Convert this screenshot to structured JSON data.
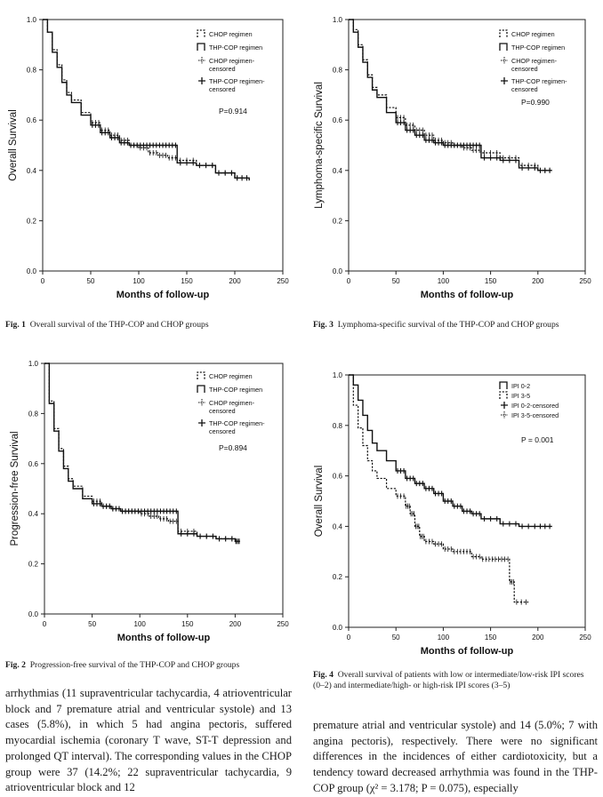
{
  "chart_data": [
    {
      "type": "line",
      "figure": "Fig. 1",
      "ylabel": "Overall Survival",
      "xlabel": "Months of follow-up",
      "xlim": [
        0,
        250
      ],
      "ylim": [
        0,
        1.0
      ],
      "xticks": [
        0,
        50,
        100,
        150,
        200,
        250
      ],
      "yticks": [
        0.0,
        0.2,
        0.4,
        0.6,
        0.8,
        1.0
      ],
      "legend": [
        "CHOP regimen",
        "THP-COP regimen",
        "CHOP regimen-censored",
        "THP-COP regimen-censored"
      ],
      "pvalue": "P=0.914",
      "series": [
        {
          "name": "CHOP regimen",
          "style": "dashed",
          "x": [
            0,
            5,
            10,
            15,
            20,
            25,
            30,
            40,
            50,
            60,
            70,
            80,
            90,
            100,
            110,
            120,
            130,
            140,
            160,
            180,
            200,
            215
          ],
          "y": [
            1.0,
            0.95,
            0.88,
            0.82,
            0.76,
            0.71,
            0.68,
            0.63,
            0.59,
            0.56,
            0.54,
            0.52,
            0.5,
            0.49,
            0.47,
            0.46,
            0.45,
            0.44,
            0.42,
            0.39,
            0.37,
            0.37
          ]
        },
        {
          "name": "THP-COP regimen",
          "style": "solid",
          "x": [
            0,
            5,
            10,
            15,
            20,
            25,
            30,
            40,
            50,
            60,
            70,
            80,
            90,
            100,
            110,
            120,
            130,
            140,
            160,
            180,
            200,
            215
          ],
          "y": [
            1.0,
            0.95,
            0.87,
            0.81,
            0.75,
            0.7,
            0.67,
            0.62,
            0.58,
            0.55,
            0.53,
            0.51,
            0.5,
            0.5,
            0.5,
            0.5,
            0.5,
            0.43,
            0.42,
            0.39,
            0.37,
            0.36
          ]
        }
      ]
    },
    {
      "type": "line",
      "figure": "Fig. 3",
      "ylabel": "Lymphoma-specific Survival",
      "xlabel": "Months of follow-up",
      "xlim": [
        0,
        250
      ],
      "ylim": [
        0,
        1.0
      ],
      "xticks": [
        0,
        50,
        100,
        150,
        200,
        250
      ],
      "yticks": [
        0.0,
        0.2,
        0.4,
        0.6,
        0.8,
        1.0
      ],
      "legend": [
        "CHOP regimen",
        "THP-COP regimen",
        "CHOP regimen-censored",
        "THP-COP regimen-censored"
      ],
      "pvalue": "P=0.990",
      "series": [
        {
          "name": "CHOP regimen",
          "style": "dashed",
          "x": [
            0,
            5,
            10,
            15,
            20,
            25,
            30,
            40,
            50,
            60,
            70,
            80,
            90,
            100,
            110,
            120,
            130,
            140,
            160,
            180,
            200,
            215
          ],
          "y": [
            1.0,
            0.96,
            0.9,
            0.84,
            0.78,
            0.73,
            0.7,
            0.65,
            0.61,
            0.58,
            0.56,
            0.54,
            0.52,
            0.51,
            0.5,
            0.49,
            0.48,
            0.47,
            0.45,
            0.42,
            0.4,
            0.4
          ]
        },
        {
          "name": "THP-COP regimen",
          "style": "solid",
          "x": [
            0,
            5,
            10,
            15,
            20,
            25,
            30,
            40,
            50,
            60,
            70,
            80,
            90,
            100,
            110,
            120,
            130,
            140,
            160,
            180,
            200,
            215
          ],
          "y": [
            1.0,
            0.95,
            0.89,
            0.83,
            0.77,
            0.72,
            0.69,
            0.63,
            0.59,
            0.56,
            0.54,
            0.52,
            0.51,
            0.5,
            0.5,
            0.5,
            0.5,
            0.45,
            0.44,
            0.41,
            0.4,
            0.4
          ]
        }
      ]
    },
    {
      "type": "line",
      "figure": "Fig. 2",
      "ylabel": "Progression-free Survival",
      "xlabel": "Months of follow-up",
      "xlim": [
        0,
        250
      ],
      "ylim": [
        0,
        1.0
      ],
      "xticks": [
        0,
        50,
        100,
        150,
        200,
        250
      ],
      "yticks": [
        0.0,
        0.2,
        0.4,
        0.6,
        0.8,
        1.0
      ],
      "legend": [
        "CHOP regimen",
        "THP-COP regimen",
        "CHOP regimen-censored",
        "THP-COP regimen-censored"
      ],
      "pvalue": "P=0.894",
      "series": [
        {
          "name": "CHOP regimen",
          "style": "dashed",
          "x": [
            0,
            5,
            10,
            15,
            20,
            25,
            30,
            40,
            50,
            60,
            70,
            80,
            90,
            100,
            110,
            120,
            130,
            140,
            160,
            180,
            200,
            205
          ],
          "y": [
            1.0,
            0.85,
            0.74,
            0.66,
            0.59,
            0.54,
            0.51,
            0.47,
            0.45,
            0.43,
            0.42,
            0.41,
            0.41,
            0.4,
            0.39,
            0.38,
            0.37,
            0.33,
            0.31,
            0.3,
            0.29,
            0.29
          ]
        },
        {
          "name": "THP-COP regimen",
          "style": "solid",
          "x": [
            0,
            5,
            10,
            15,
            20,
            25,
            30,
            40,
            50,
            60,
            70,
            80,
            90,
            100,
            110,
            120,
            130,
            140,
            160,
            180,
            200,
            205
          ],
          "y": [
            1.0,
            0.84,
            0.73,
            0.65,
            0.58,
            0.53,
            0.5,
            0.46,
            0.44,
            0.43,
            0.42,
            0.41,
            0.41,
            0.41,
            0.41,
            0.41,
            0.41,
            0.32,
            0.31,
            0.3,
            0.29,
            0.29
          ]
        }
      ]
    },
    {
      "type": "line",
      "figure": "Fig. 4",
      "ylabel": "Overall Survival",
      "xlabel": "Months of follow-up",
      "xlim": [
        0,
        250
      ],
      "ylim": [
        0,
        1.0
      ],
      "xticks": [
        0,
        50,
        100,
        150,
        200,
        250
      ],
      "yticks": [
        0.0,
        0.2,
        0.4,
        0.6,
        0.8,
        1.0
      ],
      "legend": [
        "IPI 0-2",
        "IPI 3-5",
        "IPI 0-2-censored",
        "IPI 3-5-censored"
      ],
      "pvalue": "P = 0.001",
      "series": [
        {
          "name": "IPI 0-2",
          "style": "solid",
          "x": [
            0,
            5,
            10,
            15,
            20,
            25,
            30,
            40,
            50,
            60,
            70,
            80,
            90,
            100,
            110,
            120,
            130,
            140,
            160,
            180,
            200,
            215
          ],
          "y": [
            1.0,
            0.96,
            0.9,
            0.84,
            0.78,
            0.73,
            0.7,
            0.66,
            0.62,
            0.59,
            0.57,
            0.55,
            0.53,
            0.5,
            0.48,
            0.46,
            0.45,
            0.43,
            0.41,
            0.4,
            0.4,
            0.4
          ]
        },
        {
          "name": "IPI 3-5",
          "style": "dashed",
          "x": [
            0,
            5,
            10,
            15,
            20,
            25,
            30,
            40,
            50,
            60,
            65,
            70,
            75,
            80,
            90,
            100,
            110,
            120,
            130,
            140,
            150,
            160,
            170,
            175,
            190
          ],
          "y": [
            1.0,
            0.88,
            0.79,
            0.72,
            0.66,
            0.62,
            0.59,
            0.55,
            0.52,
            0.48,
            0.45,
            0.4,
            0.36,
            0.34,
            0.33,
            0.31,
            0.3,
            0.3,
            0.28,
            0.27,
            0.27,
            0.27,
            0.18,
            0.1,
            0.1
          ]
        }
      ]
    }
  ],
  "captions": {
    "fig1": {
      "label": "Fig. 1",
      "text": "Overall survival of the THP-COP and CHOP groups"
    },
    "fig3": {
      "label": "Fig. 3",
      "text": "Lymphoma-specific survival of the THP-COP and CHOP groups"
    },
    "fig2": {
      "label": "Fig. 2",
      "text": "Progression-free survival of the THP-COP and CHOP groups"
    },
    "fig4": {
      "label": "Fig. 4",
      "text": "Overall survival of patients with low or intermediate/low-risk IPI scores (0–2) and intermediate/high- or high-risk IPI scores (3–5)"
    }
  },
  "body": {
    "left": "arrhythmias (11 supraventricular tachycardia, 4 atrioventricular block and 7 premature atrial and ventricular systole) and 13 cases (5.8%), in which 5 had angina pectoris, suffered myocardial ischemia (coronary T wave, ST-T depression and prolonged QT interval). The corresponding values in the CHOP group were 37 (14.2%; 22 supraventricular tachycardia, 9 atrioventricular block and 12",
    "right": "premature atrial and ventricular systole) and 14 (5.0%; 7 with angina pectoris), respectively. There were no significant differences in the incidences of either cardiotoxicity, but a tendency toward decreased arrhythmia was found in the THP-COP group (χ² = 3.178; P = 0.075), especially"
  }
}
